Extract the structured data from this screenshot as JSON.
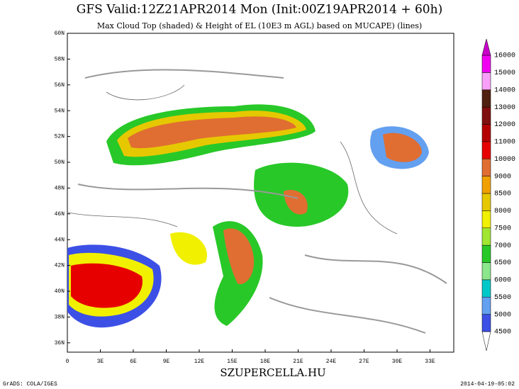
{
  "header": {
    "title": "GFS Valid:12Z21APR2014 Mon (Init:00Z19APR2014 + 60h)",
    "subtitle": "Max Cloud Top (shaded) & Height of EL (10E3 m AGL) based on MUCAPE) (lines)"
  },
  "map": {
    "lat_labels": [
      "60N",
      "58N",
      "56N",
      "54N",
      "52N",
      "50N",
      "48N",
      "46N",
      "44N",
      "42N",
      "40N",
      "38N",
      "36N"
    ],
    "lon_labels": [
      "0",
      "3E",
      "6E",
      "9E",
      "12E",
      "15E",
      "18E",
      "21E",
      "24E",
      "27E",
      "30E",
      "33E"
    ]
  },
  "colorbar": {
    "levels": [
      4500,
      5000,
      5500,
      6000,
      6500,
      7000,
      7500,
      8000,
      8500,
      9000,
      10000,
      11000,
      12000,
      13000,
      14000,
      15000,
      16000
    ],
    "colors": [
      "#ffffff",
      "#3c50e6",
      "#64a0f0",
      "#00c8c8",
      "#8ce68c",
      "#28c828",
      "#a0e632",
      "#f0f000",
      "#e6c800",
      "#f0a000",
      "#e06e32",
      "#e60000",
      "#b40000",
      "#801010",
      "#502010",
      "#f8a0f8",
      "#f000f0",
      "#c800c8"
    ]
  },
  "footer": {
    "left": "GrADS: COLA/IGES",
    "center": "SZUPERCELLA.HU",
    "right": "2014-04-19-05:02"
  }
}
